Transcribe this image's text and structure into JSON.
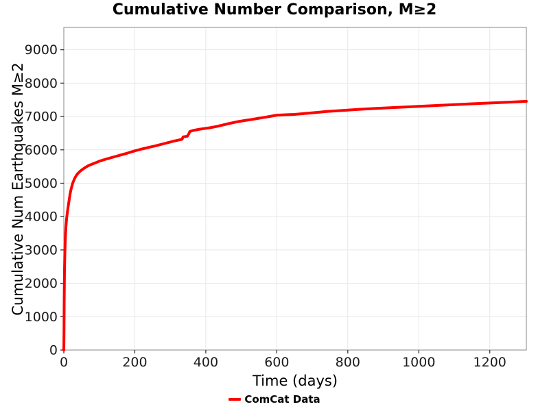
{
  "chart_data": {
    "type": "line",
    "title": "Cumulative Number Comparison, M≥2",
    "xlabel": "Time (days)",
    "ylabel": "Cumulative Num Earthquakes M≥2",
    "xlim": [
      0,
      1303
    ],
    "ylim": [
      0,
      9670
    ],
    "xticks": [
      0,
      200,
      400,
      600,
      800,
      1000,
      1200
    ],
    "yticks": [
      0,
      1000,
      2000,
      3000,
      4000,
      5000,
      6000,
      7000,
      8000,
      9000
    ],
    "grid": true,
    "legend_position": "bottom-center",
    "series": [
      {
        "name": "ComCat Data",
        "color": "#FF0000",
        "line_width": 4,
        "points": [
          [
            0,
            0
          ],
          [
            0.5,
            600
          ],
          [
            1,
            1400
          ],
          [
            1.5,
            2000
          ],
          [
            2,
            2400
          ],
          [
            3,
            2950
          ],
          [
            4,
            3300
          ],
          [
            5,
            3520
          ],
          [
            6,
            3700
          ],
          [
            8,
            3950
          ],
          [
            10,
            4130
          ],
          [
            12,
            4280
          ],
          [
            15,
            4500
          ],
          [
            18,
            4700
          ],
          [
            21,
            4850
          ],
          [
            25,
            5000
          ],
          [
            30,
            5130
          ],
          [
            35,
            5230
          ],
          [
            40,
            5300
          ],
          [
            46,
            5360
          ],
          [
            52,
            5410
          ],
          [
            60,
            5470
          ],
          [
            70,
            5530
          ],
          [
            80,
            5575
          ],
          [
            90,
            5615
          ],
          [
            100,
            5660
          ],
          [
            115,
            5710
          ],
          [
            130,
            5755
          ],
          [
            145,
            5800
          ],
          [
            160,
            5845
          ],
          [
            180,
            5905
          ],
          [
            200,
            5970
          ],
          [
            220,
            6025
          ],
          [
            240,
            6075
          ],
          [
            260,
            6125
          ],
          [
            280,
            6180
          ],
          [
            300,
            6235
          ],
          [
            315,
            6275
          ],
          [
            328,
            6305
          ],
          [
            333,
            6315
          ],
          [
            336,
            6390
          ],
          [
            342,
            6398
          ],
          [
            348,
            6408
          ],
          [
            352,
            6480
          ],
          [
            355,
            6550
          ],
          [
            362,
            6575
          ],
          [
            370,
            6592
          ],
          [
            380,
            6612
          ],
          [
            395,
            6638
          ],
          [
            410,
            6660
          ],
          [
            430,
            6700
          ],
          [
            460,
            6775
          ],
          [
            490,
            6845
          ],
          [
            510,
            6880
          ],
          [
            530,
            6910
          ],
          [
            545,
            6940
          ],
          [
            565,
            6975
          ],
          [
            580,
            7000
          ],
          [
            600,
            7040
          ],
          [
            625,
            7052
          ],
          [
            650,
            7062
          ],
          [
            680,
            7092
          ],
          [
            710,
            7120
          ],
          [
            740,
            7148
          ],
          [
            770,
            7172
          ],
          [
            800,
            7192
          ],
          [
            840,
            7218
          ],
          [
            880,
            7242
          ],
          [
            920,
            7264
          ],
          [
            960,
            7284
          ],
          [
            1000,
            7305
          ],
          [
            1050,
            7330
          ],
          [
            1100,
            7356
          ],
          [
            1150,
            7380
          ],
          [
            1200,
            7404
          ],
          [
            1250,
            7428
          ],
          [
            1303,
            7455
          ]
        ]
      }
    ]
  },
  "colors": {
    "background": "#FFFFFF",
    "grid": "#E7E7E7",
    "spine": "#9B9B9B",
    "tick": "#262626",
    "text": "#1A1A1A",
    "accent": "#FF0000"
  }
}
